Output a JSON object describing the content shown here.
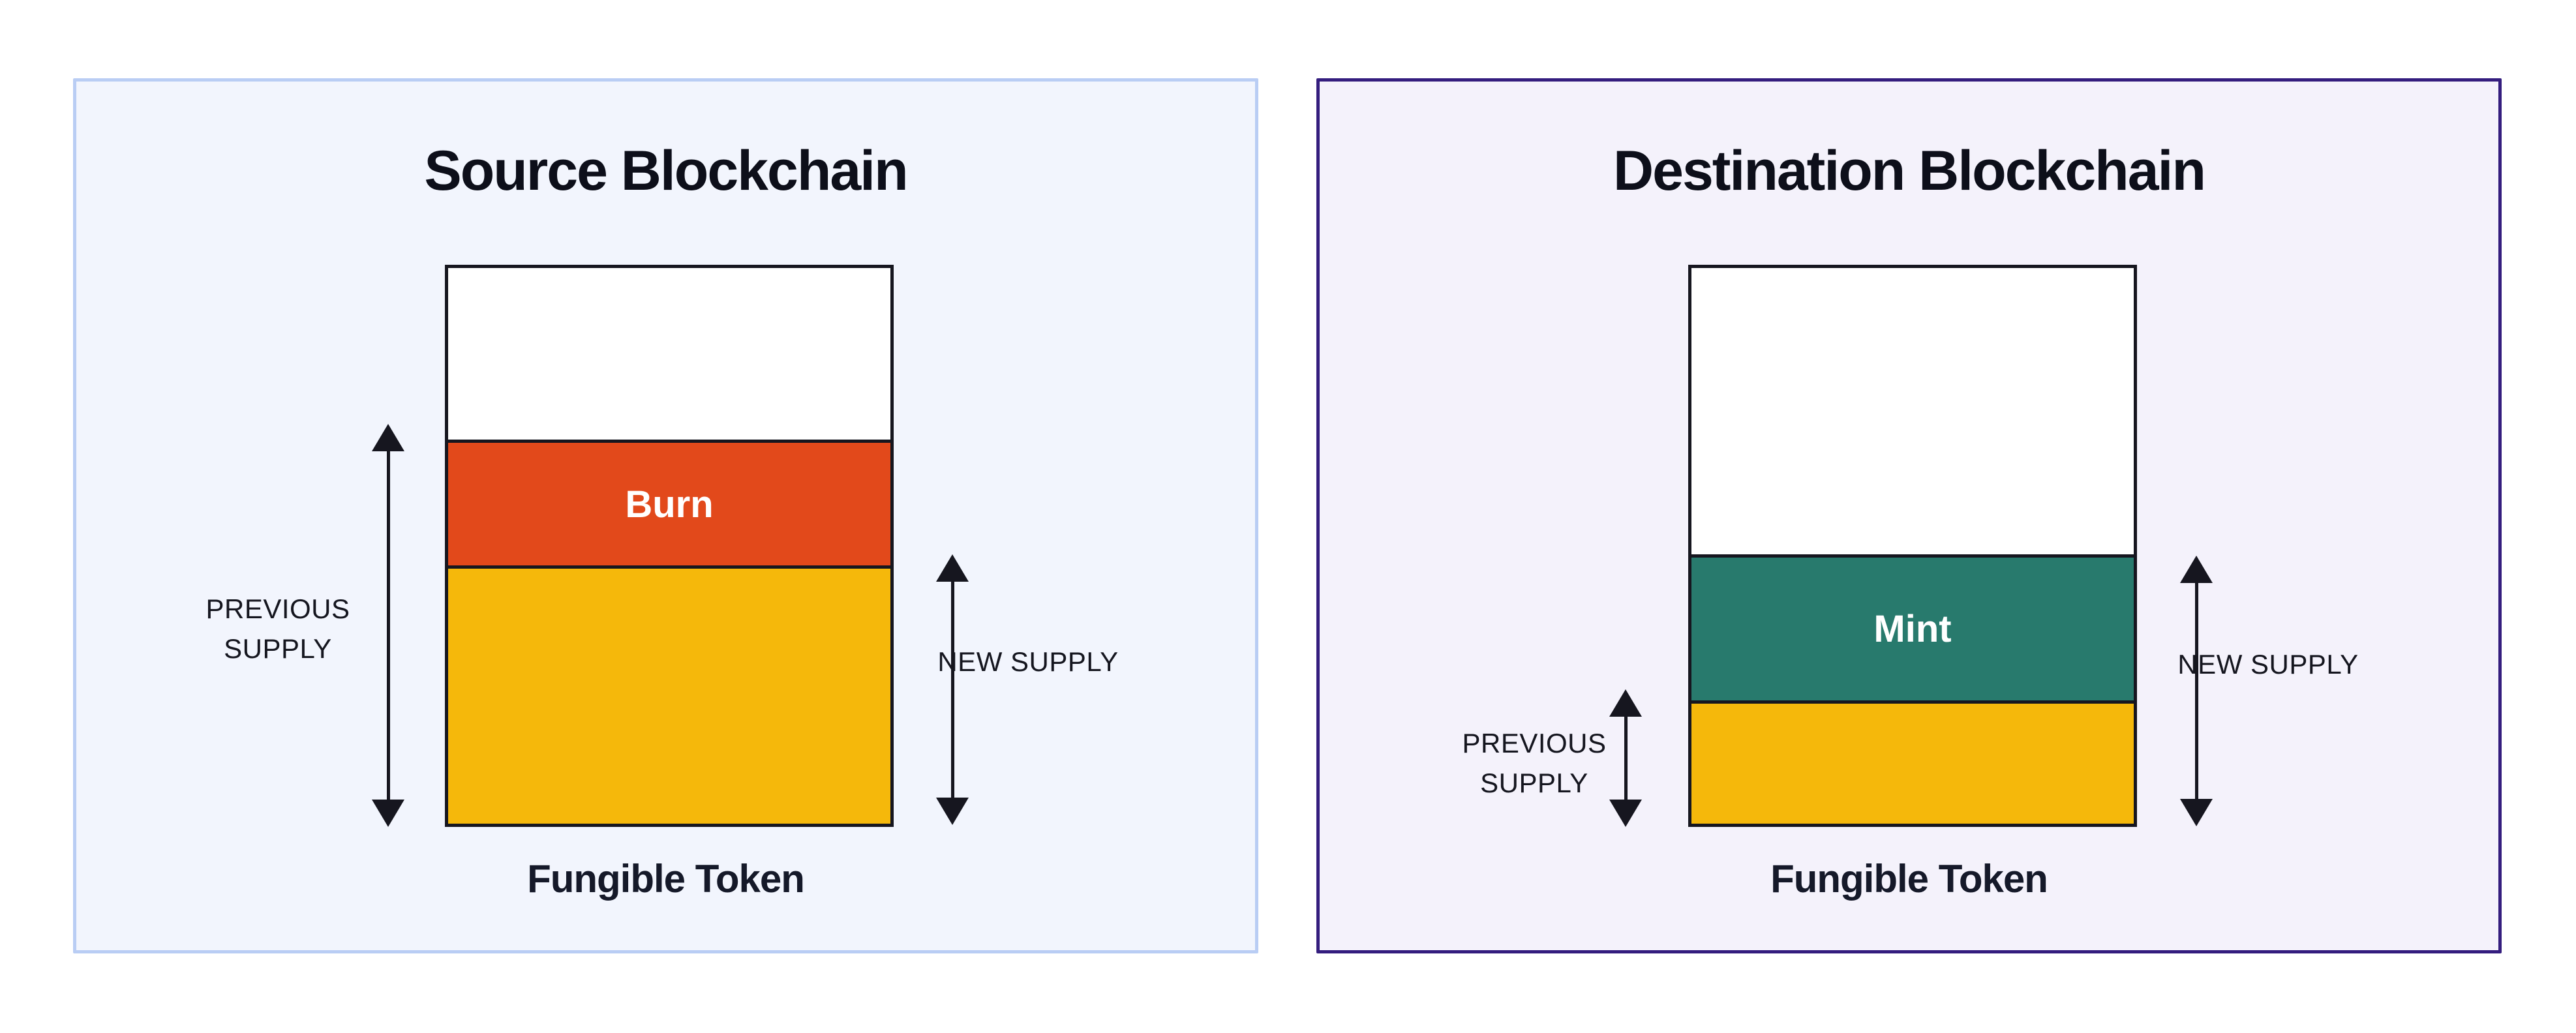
{
  "canvas": {
    "background": "#FFFFFF"
  },
  "arrow_color": "#16161F",
  "panels": [
    {
      "id": "source",
      "title": "Source Blockchain",
      "caption": "Fungible Token",
      "colors": {
        "background": "#F2F5FD",
        "border": "#B9CDF4"
      },
      "stack_sections": [
        {
          "name": "unallocated",
          "label": "",
          "color": "#FFFFFF",
          "height": "30.9%"
        },
        {
          "name": "burn",
          "label": "Burn",
          "color": "#E2491B",
          "height": "22.6%"
        },
        {
          "name": "token-supply",
          "label": "",
          "color": "#F5B80B",
          "height": "46.5%"
        }
      ],
      "measures": {
        "previous": "PREVIOUS SUPPLY",
        "new": "NEW SUPPLY"
      }
    },
    {
      "id": "destination",
      "title": "Destination Blockchain",
      "caption": "Fungible Token",
      "colors": {
        "background": "#F4F2FB",
        "border": "#341D7E"
      },
      "stack_sections": [
        {
          "name": "unallocated",
          "label": "",
          "color": "#FFFFFF",
          "height": "51.5%"
        },
        {
          "name": "mint",
          "label": "Mint",
          "color": "#287A6D",
          "height": "26.3%"
        },
        {
          "name": "token-supply",
          "label": "",
          "color": "#F5B80B",
          "height": "22.2%"
        }
      ],
      "measures": {
        "previous": "PREVIOUS SUPPLY",
        "new": "NEW SUPPLY"
      }
    }
  ]
}
